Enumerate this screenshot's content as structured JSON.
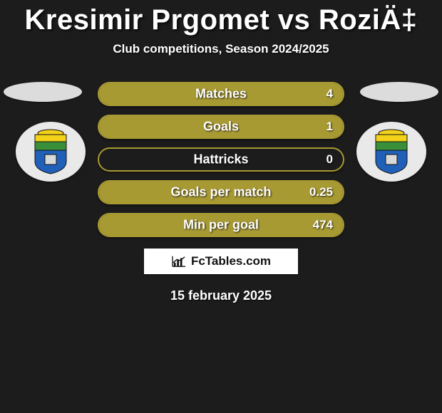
{
  "title": "Kresimir Prgomet vs RoziÄ‡",
  "subtitle": "Club competitions, Season 2024/2025",
  "date": "15 february 2025",
  "brand": "FcTables.com",
  "background_color": "#1c1c1c",
  "accent_color": "#a89a33",
  "team_crest": {
    "band_top": "#f3d21a",
    "band_bottom": "#3a8f3a",
    "shield": "#2060b8",
    "outline": "#111"
  },
  "stats": [
    {
      "label": "Matches",
      "value": "4",
      "fill_pct": 100,
      "fill_color": "#a89a33",
      "border_color": "#a89a33",
      "track_color": "#1c1c1c"
    },
    {
      "label": "Goals",
      "value": "1",
      "fill_pct": 100,
      "fill_color": "#a89a33",
      "border_color": "#a89a33",
      "track_color": "#1c1c1c"
    },
    {
      "label": "Hattricks",
      "value": "0",
      "fill_pct": 0,
      "fill_color": "#a89a33",
      "border_color": "#a89a33",
      "track_color": "#1c1c1c"
    },
    {
      "label": "Goals per match",
      "value": "0.25",
      "fill_pct": 100,
      "fill_color": "#a89a33",
      "border_color": "#a89a33",
      "track_color": "#1c1c1c"
    },
    {
      "label": "Min per goal",
      "value": "474",
      "fill_pct": 100,
      "fill_color": "#a89a33",
      "border_color": "#a89a33",
      "track_color": "#1c1c1c"
    }
  ]
}
